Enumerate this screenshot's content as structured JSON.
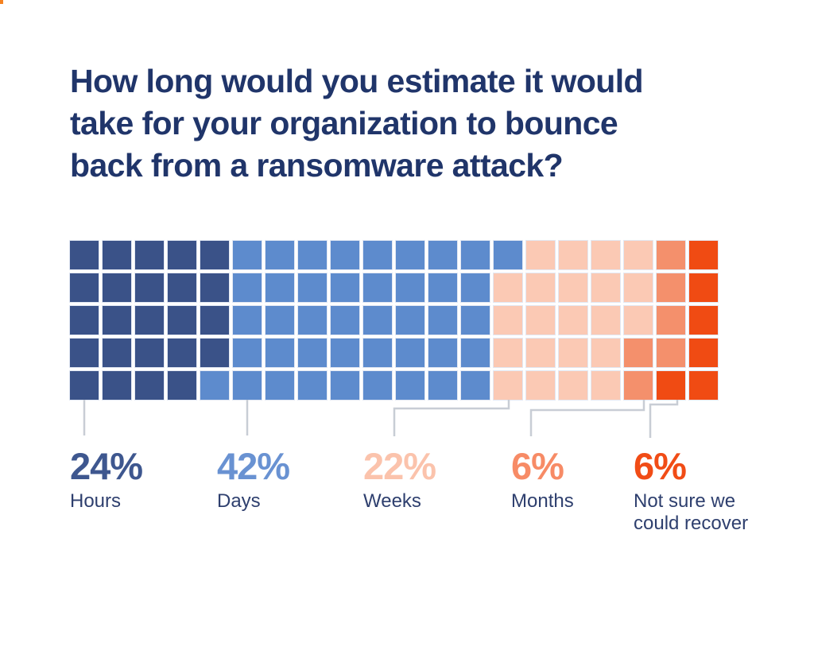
{
  "meta": {
    "background_color": "#ffffff",
    "corner_artifact_color": "#f58220"
  },
  "header": {
    "title_lines": [
      "How long would you estimate it would",
      "take for your organization to bounce",
      "back from a ransomware attack?"
    ],
    "title_color": "#20356a"
  },
  "chart_data": {
    "type": "waffle",
    "title": "How long would you estimate it would take for your organization to bounce back from a ransomware attack?",
    "grid": {
      "rows": 5,
      "columns": 20,
      "total_squares": 100,
      "fill_order": "column-major-top-to-bottom"
    },
    "categories": [
      {
        "label": "Hours",
        "percent": 24,
        "value_label": "24%",
        "color": "#3a5288",
        "text_color": "#3e578f"
      },
      {
        "label": "Days",
        "percent": 42,
        "value_label": "42%",
        "color": "#5d8bcd",
        "text_color": "#6992d2"
      },
      {
        "label": "Weeks",
        "percent": 22,
        "value_label": "22%",
        "color": "#fbc9b4",
        "text_color": "#fbc3ac"
      },
      {
        "label": "Months",
        "percent": 6,
        "value_label": "6%",
        "color": "#f4906c",
        "text_color": "#f78b66"
      },
      {
        "label": "Not sure we could recover",
        "percent": 6,
        "value_label": "6%",
        "color": "#f04b13",
        "text_color": "#f14c16"
      }
    ],
    "legend_position": "bottom",
    "connector_color": "#c8cdd5",
    "category_text_color": "#2e3f6e"
  }
}
